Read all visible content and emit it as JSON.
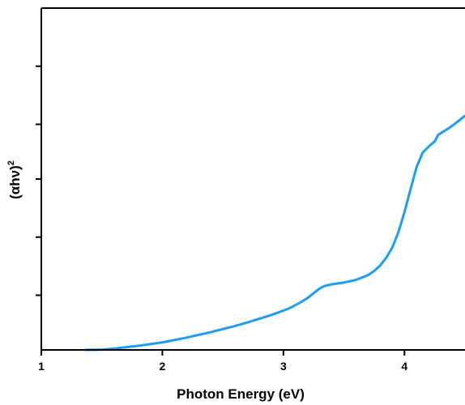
{
  "chart_data": {
    "type": "line",
    "title": "",
    "xlabel": "Photon Energy (eV)",
    "ylabel_base": "(αhν)",
    "ylabel_sup": "2",
    "xlim": [
      1,
      4.5
    ],
    "ylim": [
      0,
      1
    ],
    "xticks": [
      1,
      2,
      3,
      4
    ],
    "xtick_labels": [
      "1",
      "2",
      "3",
      "4"
    ],
    "yticks": [
      0.16,
      0.33,
      0.5,
      0.66,
      0.83
    ],
    "ytick_labels": [],
    "grid": false,
    "legend": "none",
    "series": [
      {
        "color": "#1e9cf0",
        "x": [
          1.37,
          1.5,
          1.6,
          1.7,
          1.8,
          1.9,
          2.0,
          2.1,
          2.2,
          2.3,
          2.4,
          2.5,
          2.6,
          2.7,
          2.8,
          2.9,
          3.0,
          3.05,
          3.1,
          3.15,
          3.2,
          3.25,
          3.3,
          3.34,
          3.4,
          3.5,
          3.6,
          3.7,
          3.75,
          3.8,
          3.85,
          3.9,
          3.95,
          4.0,
          4.05,
          4.1,
          4.15,
          4.2,
          4.25,
          4.28,
          4.3,
          4.35,
          4.4,
          4.5
        ],
        "y": [
          0.0,
          0.001,
          0.004,
          0.008,
          0.012,
          0.017,
          0.022,
          0.029,
          0.036,
          0.044,
          0.052,
          0.061,
          0.07,
          0.08,
          0.091,
          0.102,
          0.115,
          0.122,
          0.131,
          0.141,
          0.152,
          0.166,
          0.18,
          0.187,
          0.192,
          0.197,
          0.205,
          0.219,
          0.231,
          0.247,
          0.27,
          0.3,
          0.345,
          0.403,
          0.47,
          0.535,
          0.577,
          0.595,
          0.61,
          0.63,
          0.634,
          0.645,
          0.657,
          0.685
        ]
      }
    ]
  }
}
